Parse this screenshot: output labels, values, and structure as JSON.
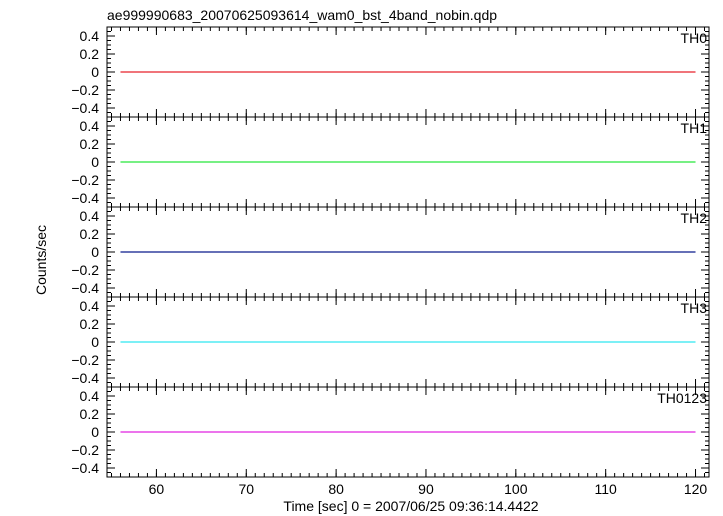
{
  "chart_data": {
    "type": "line",
    "title": "ae999990683_20070625093614_wam0_bst_4band_nobin.qdp",
    "xlabel": "Time [sec] 0 = 2007/06/25 09:36:14.4422",
    "ylabel": "Counts/sec",
    "xlim": [
      54.5,
      121.5
    ],
    "x_ticks": [
      60,
      70,
      80,
      90,
      100,
      110,
      120
    ],
    "x_tick_labels": [
      "60",
      "70",
      "80",
      "90",
      "100",
      "110",
      "120"
    ],
    "ylim": [
      -0.5,
      0.5
    ],
    "y_ticks": [
      0.4,
      0.2,
      0,
      -0.2,
      -0.4
    ],
    "y_tick_labels": [
      "0.4",
      "0.2",
      "0",
      "−0.2",
      "−0.4"
    ],
    "grid": false,
    "series": [
      {
        "name": "TH0",
        "color": "#e8202a",
        "x": [
          56,
          120
        ],
        "y": [
          0,
          0
        ]
      },
      {
        "name": "TH1",
        "color": "#26e63a",
        "x": [
          56,
          120
        ],
        "y": [
          0,
          0
        ]
      },
      {
        "name": "TH2",
        "color": "#0a1a8c",
        "x": [
          56,
          120
        ],
        "y": [
          0,
          0
        ]
      },
      {
        "name": "TH3",
        "color": "#2ee8f0",
        "x": [
          56,
          120
        ],
        "y": [
          0,
          0
        ]
      },
      {
        "name": "TH0123",
        "color": "#e020e0",
        "x": [
          56,
          120
        ],
        "y": [
          0,
          0
        ]
      }
    ]
  }
}
